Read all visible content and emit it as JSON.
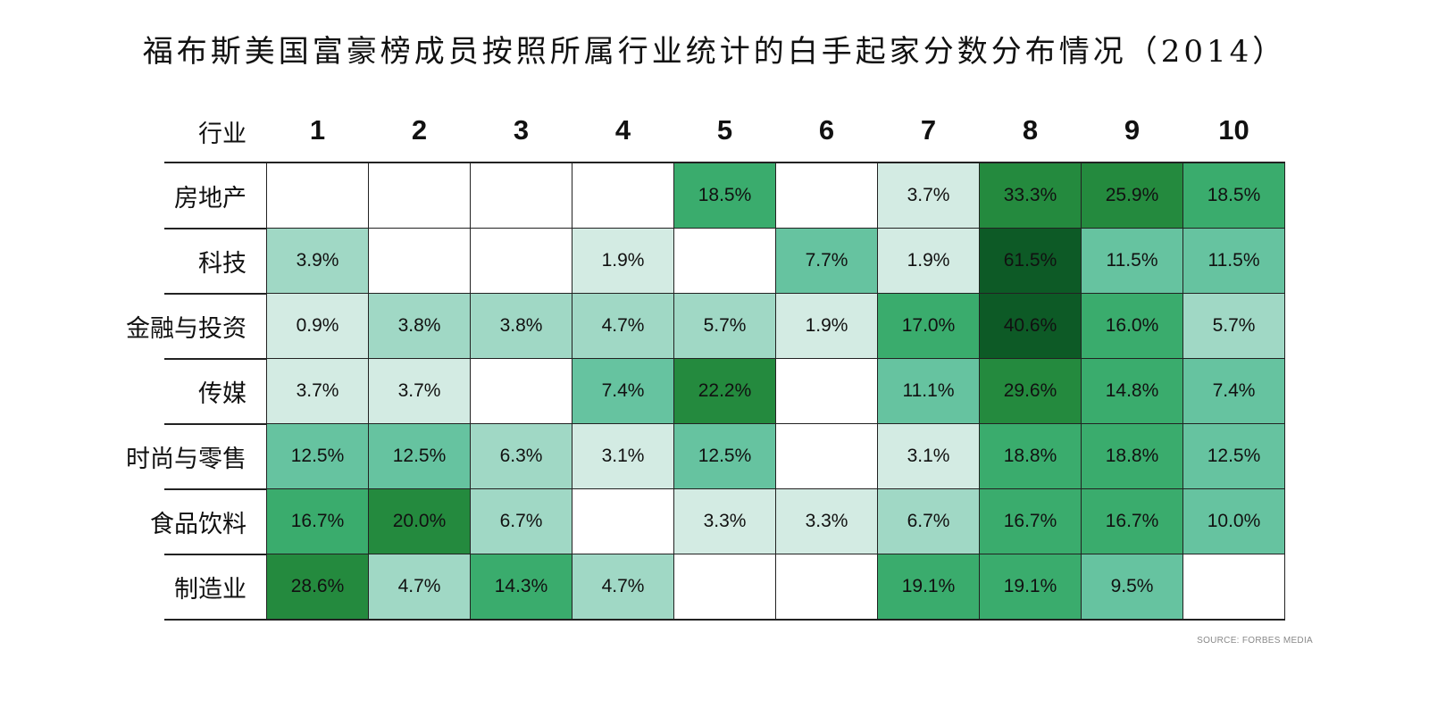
{
  "title": "福布斯美国富豪榜成员按照所属行业统计的白手起家分数分布情况（2014）",
  "source": "SOURCE: FORBES MEDIA",
  "chart_data": {
    "type": "heatmap",
    "title": "福布斯美国富豪榜成员按照所属行业统计的白手起家分数分布情况（2014）",
    "row_header": "行业",
    "columns": [
      "1",
      "2",
      "3",
      "4",
      "5",
      "6",
      "7",
      "8",
      "9",
      "10"
    ],
    "rows": [
      "房地产",
      "科技",
      "金融与投资",
      "传媒",
      "时尚与零售",
      "食品饮料",
      "制造业"
    ],
    "values": [
      [
        null,
        null,
        null,
        null,
        18.5,
        null,
        3.7,
        33.3,
        25.9,
        18.5
      ],
      [
        3.9,
        null,
        null,
        1.9,
        null,
        7.7,
        1.9,
        61.5,
        11.5,
        11.5
      ],
      [
        0.9,
        3.8,
        3.8,
        4.7,
        5.7,
        1.9,
        17.0,
        40.6,
        16.0,
        5.7
      ],
      [
        3.7,
        3.7,
        null,
        7.4,
        22.2,
        null,
        11.1,
        29.6,
        14.8,
        7.4
      ],
      [
        12.5,
        12.5,
        6.3,
        3.1,
        12.5,
        null,
        3.1,
        18.8,
        18.8,
        12.5
      ],
      [
        16.7,
        20.0,
        6.7,
        null,
        3.3,
        3.3,
        6.7,
        16.7,
        16.7,
        10.0
      ],
      [
        28.6,
        4.7,
        14.3,
        4.7,
        null,
        null,
        19.1,
        19.1,
        9.5,
        null
      ]
    ],
    "labels": [
      [
        "",
        "",
        "",
        "",
        "18.5%",
        "",
        "3.7%",
        "33.3%",
        "25.9%",
        "18.5%"
      ],
      [
        "3.9%",
        "",
        "",
        "1.9%",
        "",
        "7.7%",
        "1.9%",
        "61.5%",
        "11.5%",
        "11.5%"
      ],
      [
        "0.9%",
        "3.8%",
        "3.8%",
        "4.7%",
        "5.7%",
        "1.9%",
        "17.0%",
        "40.6%",
        "16.0%",
        "5.7%"
      ],
      [
        "3.7%",
        "3.7%",
        "",
        "7.4%",
        "22.2%",
        "",
        "11.1%",
        "29.6%",
        "14.8%",
        "7.4%"
      ],
      [
        "12.5%",
        "12.5%",
        "6.3%",
        "3.1%",
        "12.5%",
        "",
        "3.1%",
        "18.8%",
        "18.8%",
        "12.5%"
      ],
      [
        "16.7%",
        "20.0%",
        "6.7%",
        "",
        "3.3%",
        "3.3%",
        "6.7%",
        "16.7%",
        "16.7%",
        "10.0%"
      ],
      [
        "28.6%",
        "4.7%",
        "14.3%",
        "4.7%",
        "",
        "",
        "19.1%",
        "19.1%",
        "9.5%",
        ""
      ]
    ],
    "color_scale": [
      {
        "min": 0,
        "color": "#ffffff"
      },
      {
        "min": 0.1,
        "color": "#d3ebe3"
      },
      {
        "min": 3.75,
        "color": "#a0d8c5"
      },
      {
        "min": 7.0,
        "color": "#66c3a0"
      },
      {
        "min": 14.0,
        "color": "#3aac6d"
      },
      {
        "min": 20.0,
        "color": "#248a3e"
      },
      {
        "min": 40.0,
        "color": "#0d5a26"
      }
    ]
  }
}
